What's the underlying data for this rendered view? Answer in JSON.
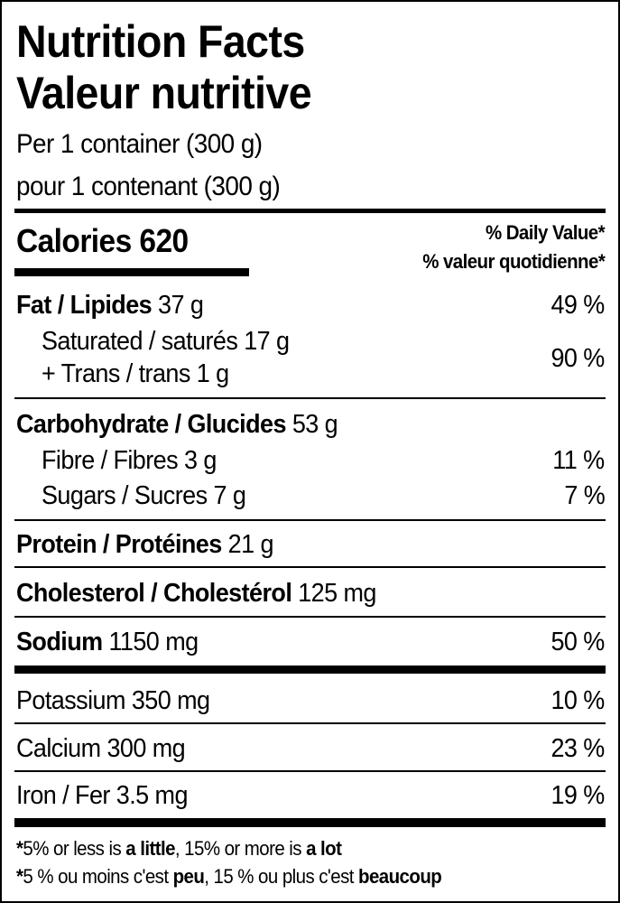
{
  "header": {
    "title_en": "Nutrition Facts",
    "title_fr": "Valeur nutritive",
    "serving_en": "Per 1 container (300 g)",
    "serving_fr": "pour 1 contenant (300 g)"
  },
  "calories": {
    "label": "Calories",
    "value": "620",
    "dv_en": "% Daily Value*",
    "dv_fr": "% valeur quotidienne*"
  },
  "nutrients": {
    "fat": {
      "label": "Fat / Lipides",
      "amount": "37 g",
      "dv": "49 %"
    },
    "saturated": {
      "label": "Saturated / saturés",
      "amount": "17 g"
    },
    "trans": {
      "label": "+ Trans / trans",
      "amount": "1 g",
      "dv": "90 %"
    },
    "carb": {
      "label": "Carbohydrate / Glucides",
      "amount": "53 g"
    },
    "fibre": {
      "label": "Fibre / Fibres",
      "amount": "3 g",
      "dv": "11 %"
    },
    "sugars": {
      "label": "Sugars / Sucres",
      "amount": "7 g",
      "dv": "7 %"
    },
    "protein": {
      "label": "Protein / Protéines",
      "amount": "21 g"
    },
    "cholesterol": {
      "label": "Cholesterol / Cholestérol",
      "amount": "125 mg"
    },
    "sodium": {
      "label": "Sodium",
      "amount": "1150 mg",
      "dv": "50 %"
    },
    "potassium": {
      "label": "Potassium",
      "amount": "350 mg",
      "dv": "10 %"
    },
    "calcium": {
      "label": "Calcium",
      "amount": "300 mg",
      "dv": "23 %"
    },
    "iron": {
      "label": "Iron / Fer",
      "amount": "3.5 mg",
      "dv": "19 %"
    }
  },
  "footnote": {
    "en": {
      "star": "*",
      "a": "5% or less is ",
      "b": "a little",
      "c": ", 15% or more is ",
      "d": "a lot"
    },
    "fr": {
      "star": "*",
      "a": "5 % ou moins c'est ",
      "b": "peu",
      "c": ", 15 % ou plus c'est ",
      "d": "beaucoup"
    }
  }
}
